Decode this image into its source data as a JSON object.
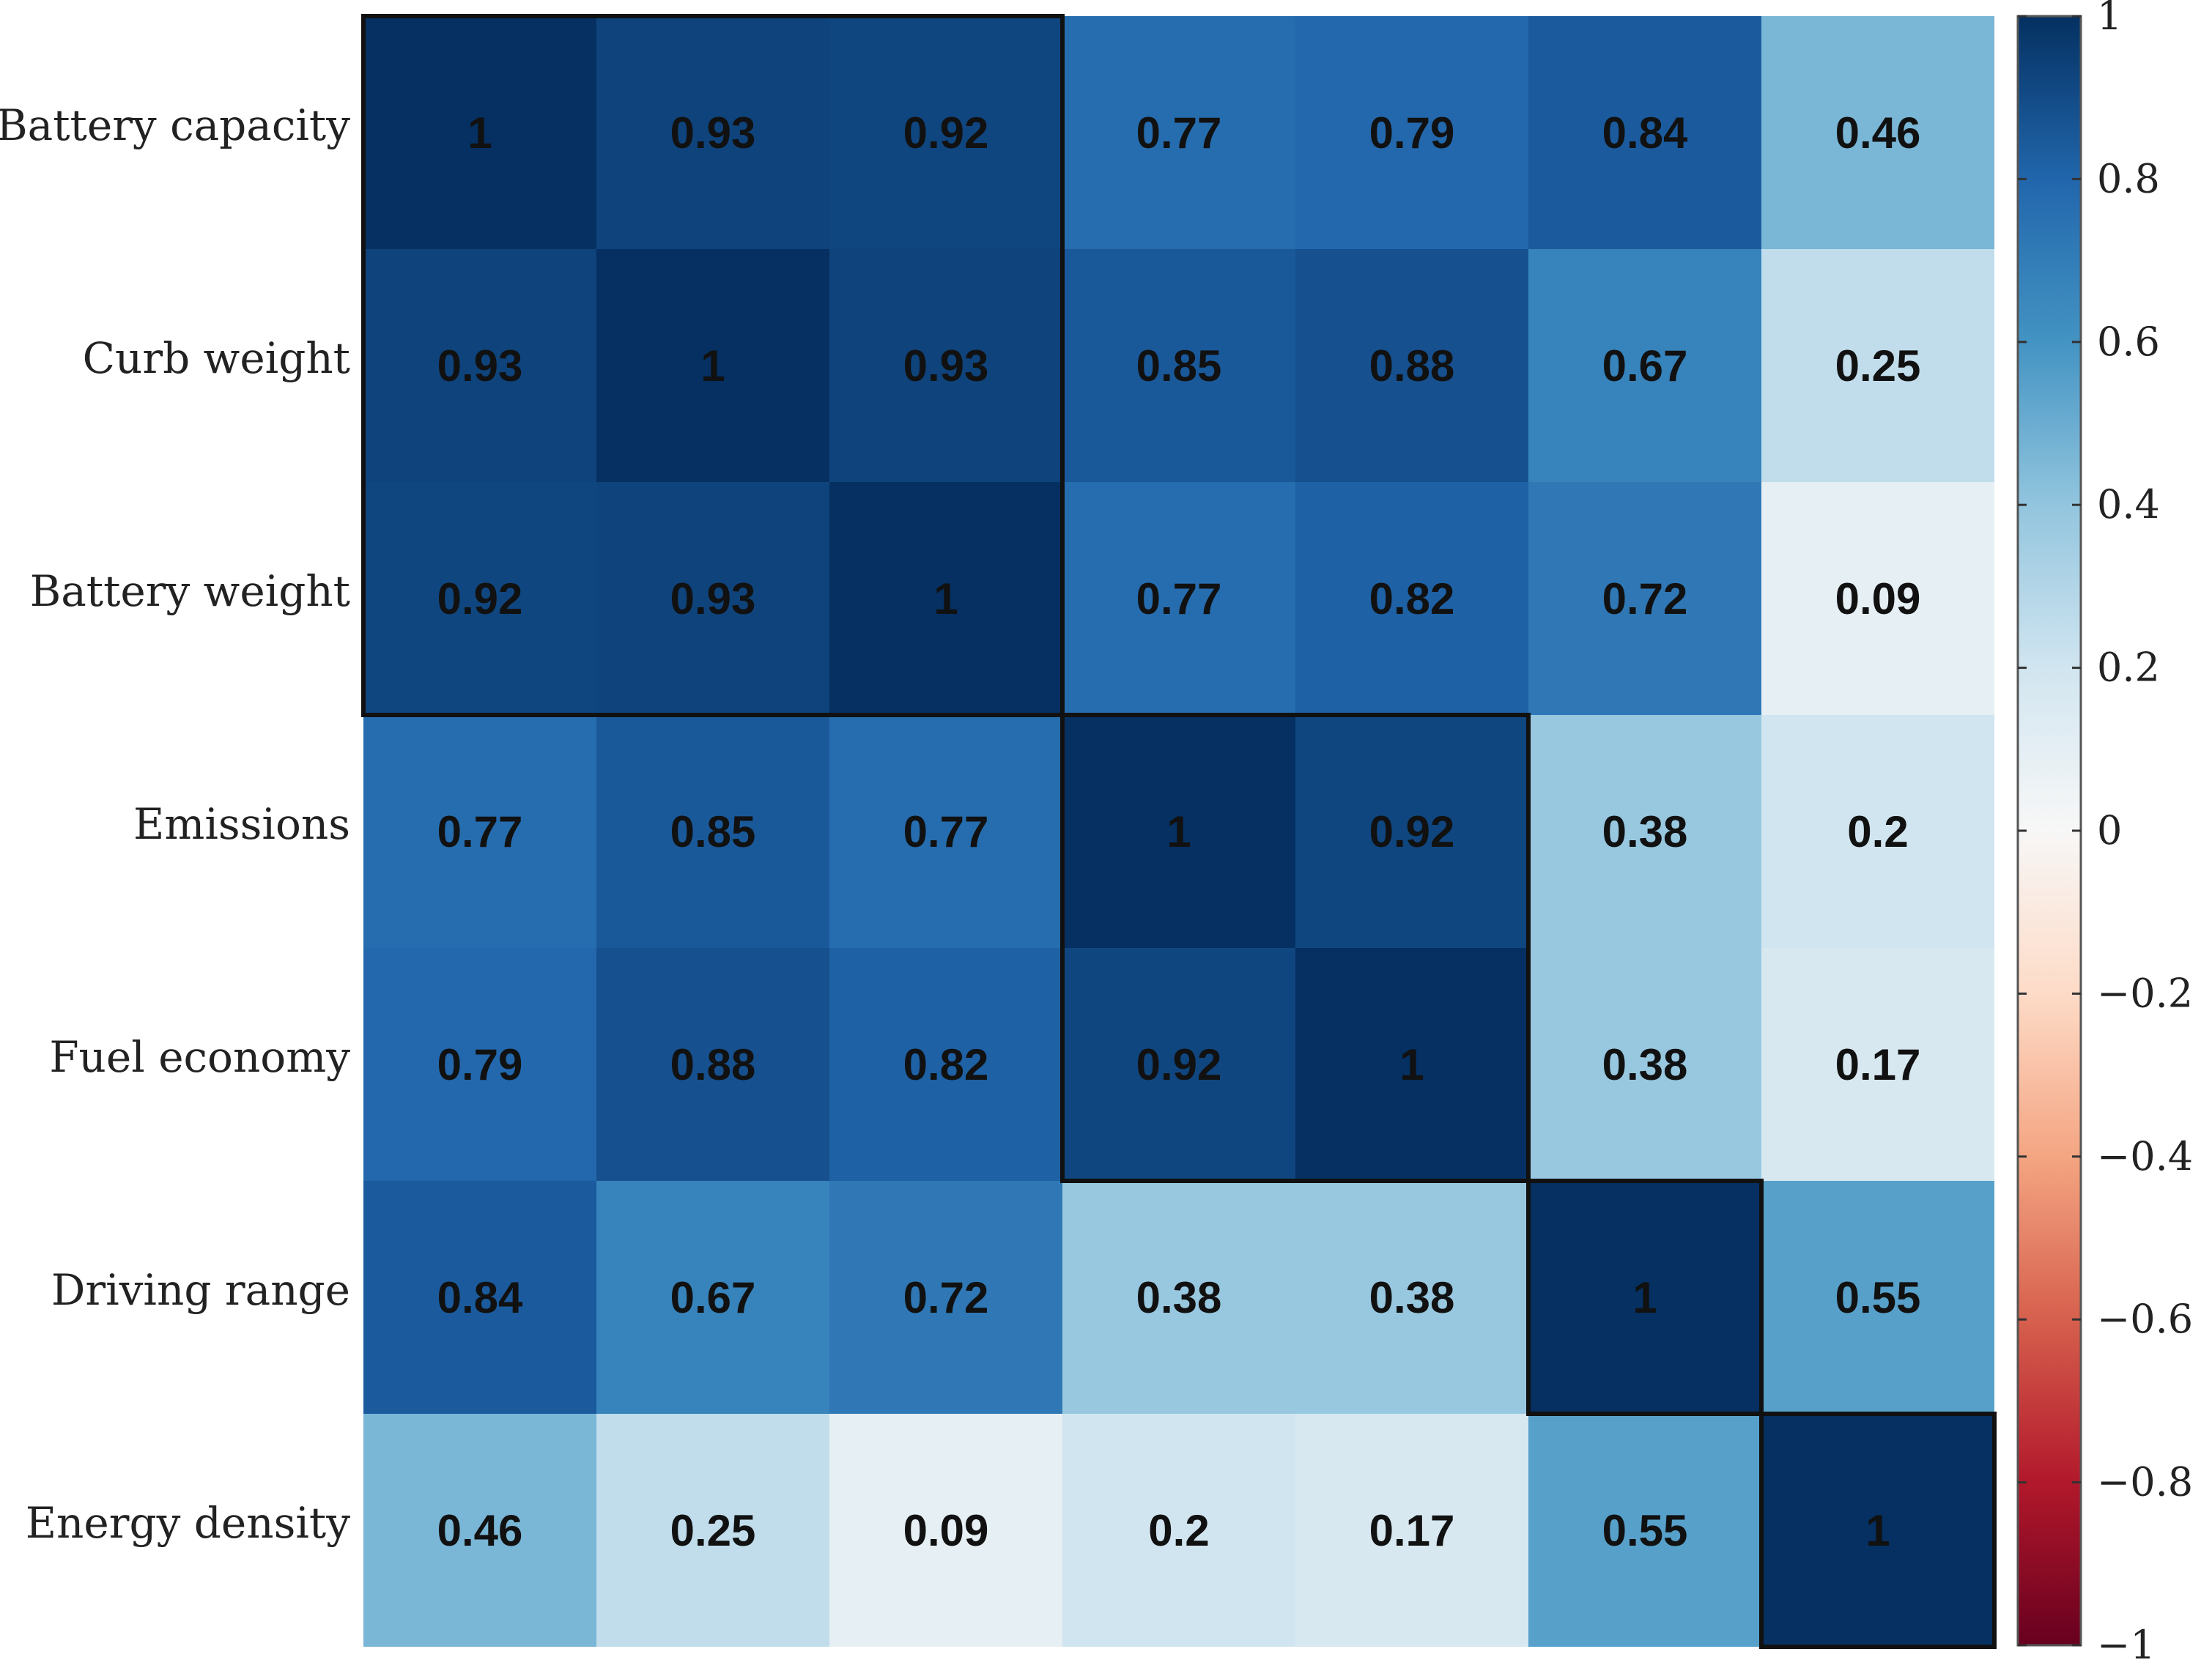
{
  "chart_data": {
    "type": "heatmap",
    "title": "",
    "row_labels": [
      "Battery capacity",
      "Curb weight",
      "Battery weight",
      "Emissions",
      "Fuel economy",
      "Driving range",
      "Energy density"
    ],
    "col_labels": [],
    "matrix": [
      [
        1,
        0.93,
        0.92,
        0.77,
        0.79,
        0.84,
        0.46
      ],
      [
        0.93,
        1,
        0.93,
        0.85,
        0.88,
        0.67,
        0.25
      ],
      [
        0.92,
        0.93,
        1,
        0.77,
        0.82,
        0.72,
        0.09
      ],
      [
        0.77,
        0.85,
        0.77,
        1,
        0.92,
        0.38,
        0.2
      ],
      [
        0.79,
        0.88,
        0.82,
        0.92,
        1,
        0.38,
        0.17
      ],
      [
        0.84,
        0.67,
        0.72,
        0.38,
        0.38,
        1,
        0.55
      ],
      [
        0.46,
        0.25,
        0.09,
        0.2,
        0.17,
        0.55,
        1
      ]
    ],
    "cell_labels": [
      [
        "1",
        "0.93",
        "0.92",
        "0.77",
        "0.79",
        "0.84",
        "0.46"
      ],
      [
        "0.93",
        "1",
        "0.93",
        "0.85",
        "0.88",
        "0.67",
        "0.25"
      ],
      [
        "0.92",
        "0.93",
        "1",
        "0.77",
        "0.82",
        "0.72",
        "0.09"
      ],
      [
        "0.77",
        "0.85",
        "0.77",
        "1",
        "0.92",
        "0.38",
        "0.2"
      ],
      [
        "0.79",
        "0.88",
        "0.82",
        "0.92",
        "1",
        "0.38",
        "0.17"
      ],
      [
        "0.84",
        "0.67",
        "0.72",
        "0.38",
        "0.38",
        "1",
        "0.55"
      ],
      [
        "0.46",
        "0.25",
        "0.09",
        "0.2",
        "0.17",
        "0.55",
        "1"
      ]
    ],
    "clusters": [
      {
        "start": 0,
        "end": 2
      },
      {
        "start": 3,
        "end": 4
      },
      {
        "start": 5,
        "end": 5
      },
      {
        "start": 6,
        "end": 6
      }
    ],
    "colorbar": {
      "range": [
        -1,
        1
      ],
      "ticks": [
        1,
        0.8,
        0.6,
        0.4,
        0.2,
        0,
        -0.2,
        -0.4,
        -0.6,
        -0.8,
        -1
      ],
      "tick_labels": [
        "1",
        "0.8",
        "0.6",
        "0.4",
        "0.2",
        "0",
        "−0.2",
        "−0.4",
        "−0.6",
        "−0.8",
        "−1"
      ],
      "placement": "right"
    },
    "colormap": "RdBu",
    "colors": {
      "positive_stops": [
        "#f7f7f7",
        "#d1e5f0",
        "#92c5de",
        "#4393c3",
        "#2166ac",
        "#053061"
      ],
      "negative_stops": [
        "#f7f7f7",
        "#fddbc7",
        "#f4a582",
        "#d6604d",
        "#b2182b",
        "#67001f"
      ],
      "cell_text": "#111111",
      "border": "#111111"
    }
  }
}
